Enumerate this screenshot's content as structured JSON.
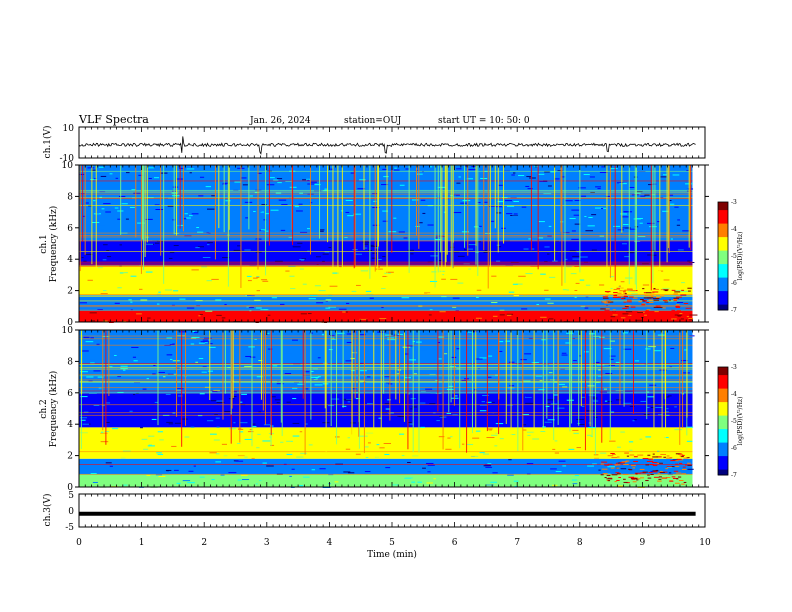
{
  "header": {
    "title": "VLF Spectra",
    "date": "Jan. 26, 2024",
    "station": "station=OUJ",
    "start": "start UT = 10: 50: 0"
  },
  "colors": {
    "colormap": [
      "#00007f",
      "#0000ff",
      "#007fff",
      "#00ffff",
      "#7fff7f",
      "#ffff00",
      "#ff7f00",
      "#ff0000",
      "#7f0000"
    ]
  },
  "chart_data": [
    {
      "type": "line",
      "panel": "ch1-waveform",
      "ylabel": "ch.1(V)",
      "ylim": [
        -10,
        10
      ],
      "yticks": [
        "10",
        "-10"
      ],
      "xlim": [
        0,
        10
      ],
      "series": [
        {
          "values_description_free": true,
          "level": -1.5,
          "amplitude": 1.0,
          "spikes": [
            1.65,
            2.9,
            4.9,
            8.45
          ]
        }
      ]
    },
    {
      "type": "heatmap",
      "panel": "ch1-spectrogram",
      "ylabel_top": "ch.1",
      "ylabel": "Frequency (kHz)",
      "ylim": [
        0,
        10
      ],
      "yticks": [
        "0",
        "2",
        "4",
        "6",
        "8",
        "10"
      ],
      "xlim": [
        0,
        9.8
      ],
      "colorbar": {
        "label": "log(PSD)(V²/Hz)",
        "range": [
          -7,
          -3
        ],
        "ticks": [
          "-3",
          "-4",
          "-5",
          "-6",
          "-7"
        ]
      },
      "bands_khz": [
        {
          "from": 0.0,
          "to": 0.7,
          "level": -3.4
        },
        {
          "from": 0.7,
          "to": 1.7,
          "level": -5.8
        },
        {
          "from": 1.7,
          "to": 3.6,
          "level": -4.6
        },
        {
          "from": 3.6,
          "to": 5.2,
          "level": -6.6
        },
        {
          "from": 5.2,
          "to": 10.0,
          "level": -6.1
        }
      ]
    },
    {
      "type": "heatmap",
      "panel": "ch2-spectrogram",
      "ylabel_top": "ch.2",
      "ylabel": "Frequency (kHz)",
      "ylim": [
        0,
        10
      ],
      "yticks": [
        "0",
        "2",
        "4",
        "6",
        "8",
        "10"
      ],
      "xlim": [
        0,
        9.8
      ],
      "colorbar": {
        "label": "log(PSD)(V²/Hz)",
        "range": [
          -7,
          -3
        ],
        "ticks": [
          "-3",
          "-4",
          "-5",
          "-6",
          "-7"
        ]
      },
      "bands_khz": [
        {
          "from": 0.0,
          "to": 0.8,
          "level": -5.2
        },
        {
          "from": 0.8,
          "to": 1.8,
          "level": -6.2
        },
        {
          "from": 1.8,
          "to": 3.8,
          "level": -4.7
        },
        {
          "from": 3.8,
          "to": 6.0,
          "level": -6.3
        },
        {
          "from": 6.0,
          "to": 10.0,
          "level": -5.9
        }
      ]
    },
    {
      "type": "line",
      "panel": "ch3-waveform",
      "ylabel": "ch.3(V)",
      "ylim": [
        -5,
        5
      ],
      "yticks": [
        "5",
        "0",
        "-5"
      ],
      "xlim": [
        0,
        10
      ],
      "xlabel": "Time (min)",
      "xticks": [
        "0",
        "1",
        "2",
        "3",
        "4",
        "5",
        "6",
        "7",
        "8",
        "9",
        "10"
      ],
      "series": [
        {
          "level": -1.0
        }
      ]
    }
  ]
}
